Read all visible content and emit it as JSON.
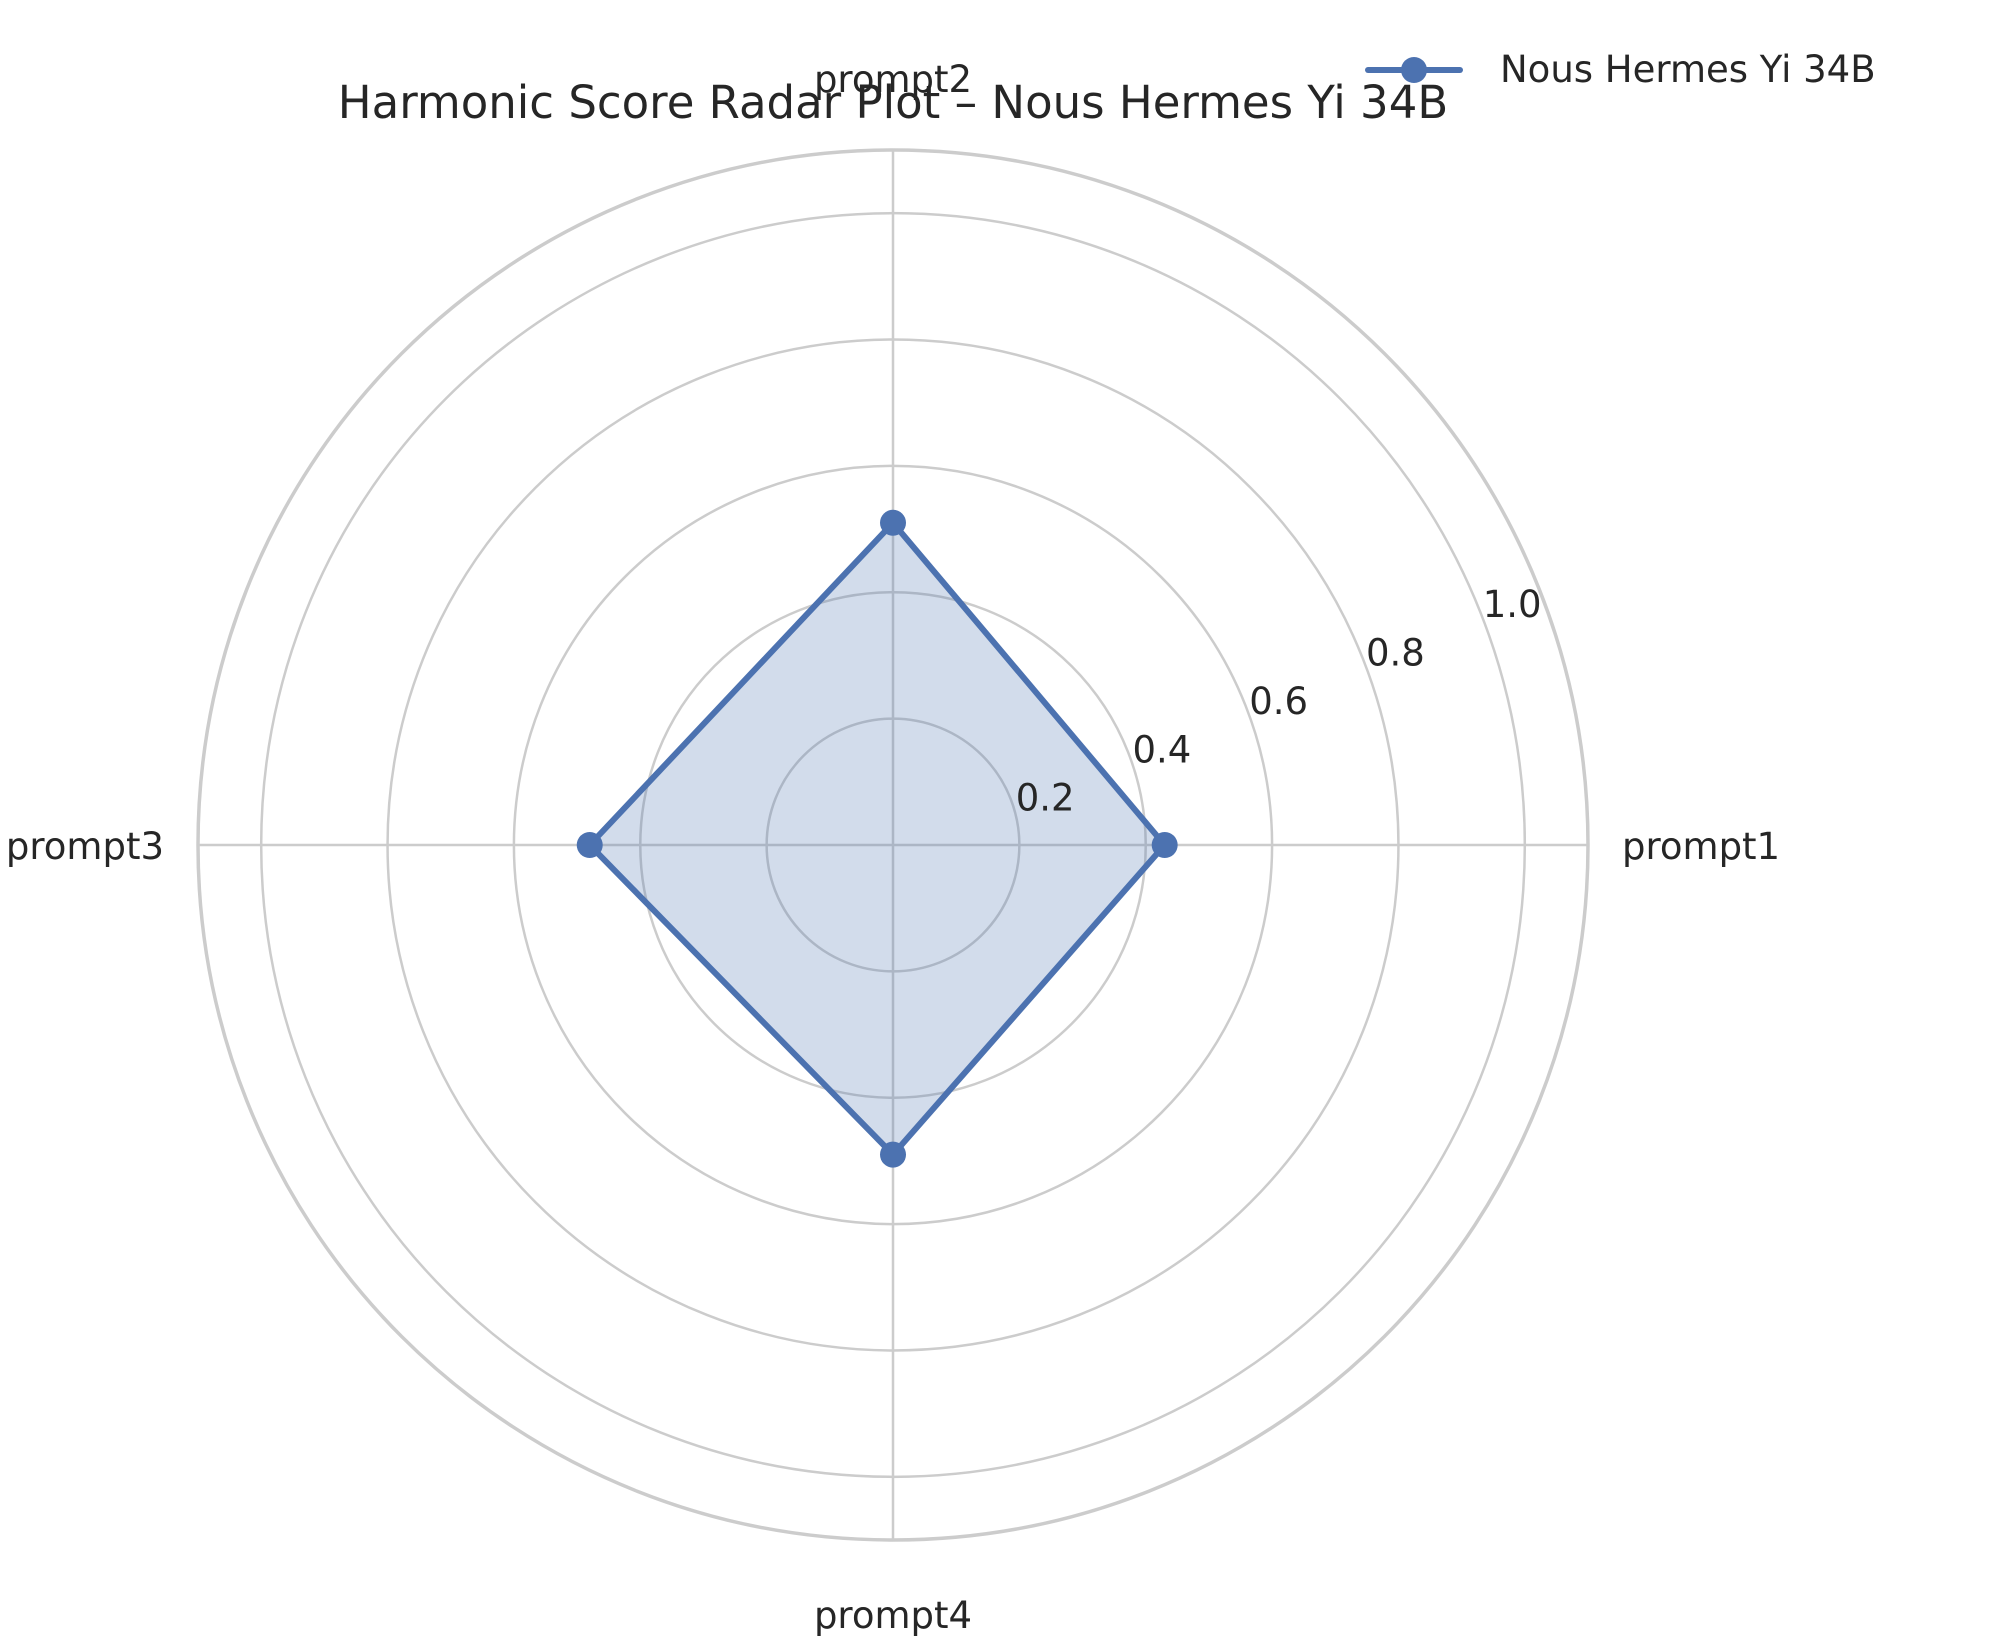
{
  "chart_data": {
    "type": "radar",
    "title": "Harmonic Score Radar Plot – Nous Hermes Yi 34B",
    "categories": [
      "prompt1",
      "prompt2",
      "prompt3",
      "prompt4"
    ],
    "series": [
      {
        "name": "Nous Hermes Yi 34B",
        "values": [
          0.43,
          0.51,
          0.48,
          0.49
        ]
      }
    ],
    "rlim": [
      0,
      1.1
    ],
    "radial_ticks": [
      "0.2",
      "0.4",
      "0.6",
      "0.8",
      "1.0"
    ],
    "radial_tick_values": [
      0.2,
      0.4,
      0.6,
      0.8,
      1.0
    ],
    "grid": true,
    "legend_position": "top-right",
    "colors": {
      "series": "#4c72b0",
      "fill": "#4c72b0",
      "grid": "#cccccc",
      "text": "#262626"
    }
  }
}
